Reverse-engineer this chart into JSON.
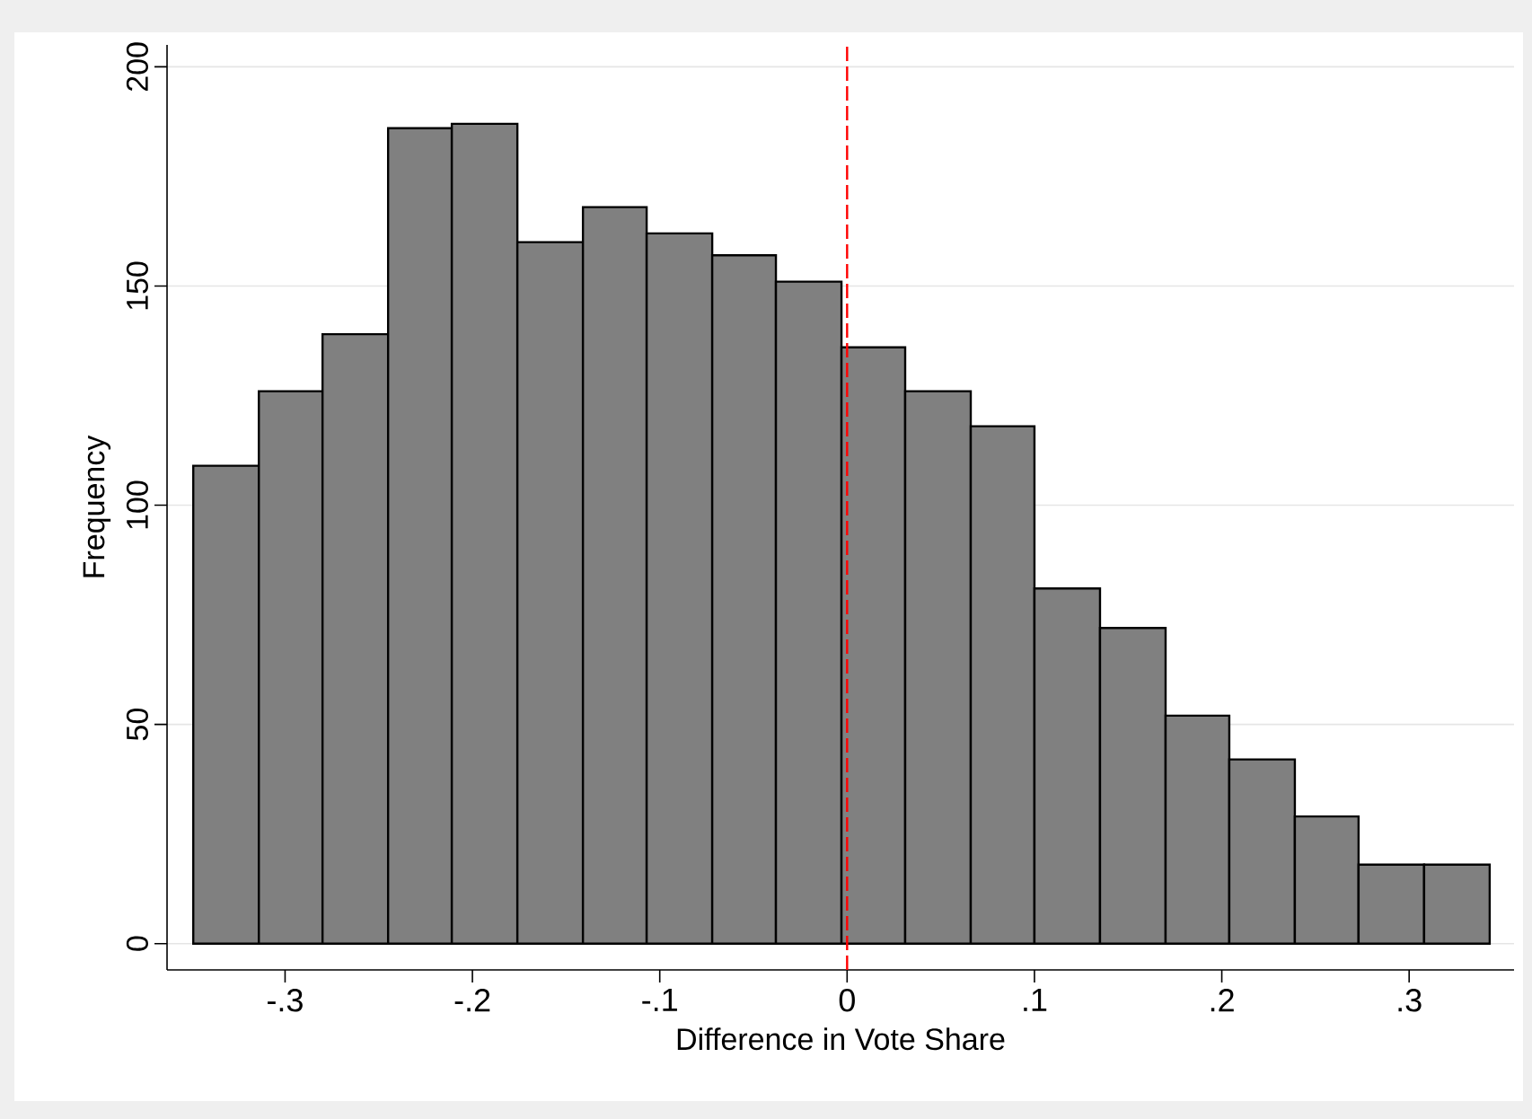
{
  "chart_data": {
    "type": "histogram",
    "xlabel": "Difference in Vote Share",
    "ylabel": "Frequency",
    "bins": [
      -0.349,
      -0.314,
      -0.28,
      -0.245,
      -0.211,
      -0.176,
      -0.141,
      -0.107,
      -0.072,
      -0.038,
      -0.003,
      0.031,
      0.066,
      0.1,
      0.135,
      0.17,
      0.204,
      0.239,
      0.273,
      0.308,
      0.343
    ],
    "values": [
      109,
      126,
      139,
      186,
      187,
      160,
      168,
      162,
      157,
      151,
      136,
      126,
      118,
      81,
      72,
      52,
      42,
      29,
      18,
      18
    ],
    "color": "#808080",
    "xlim": [
      -0.363,
      0.356
    ],
    "ylim": [
      -6,
      205
    ],
    "xticks": [
      {
        "value": -0.3,
        "label": "-.3"
      },
      {
        "value": -0.2,
        "label": "-.2"
      },
      {
        "value": -0.1,
        "label": "-.1"
      },
      0,
      {
        "value": 0.1,
        "label": ".1"
      },
      {
        "value": 0.2,
        "label": ".2"
      },
      {
        "value": 0.3,
        "label": ".3"
      }
    ],
    "yticks": [
      0,
      50,
      100,
      150,
      200
    ],
    "grid": "y",
    "ref_lines": [
      {
        "axis": "x",
        "value": 0,
        "color": "#ff0000",
        "line_style": "dashed"
      }
    ]
  }
}
